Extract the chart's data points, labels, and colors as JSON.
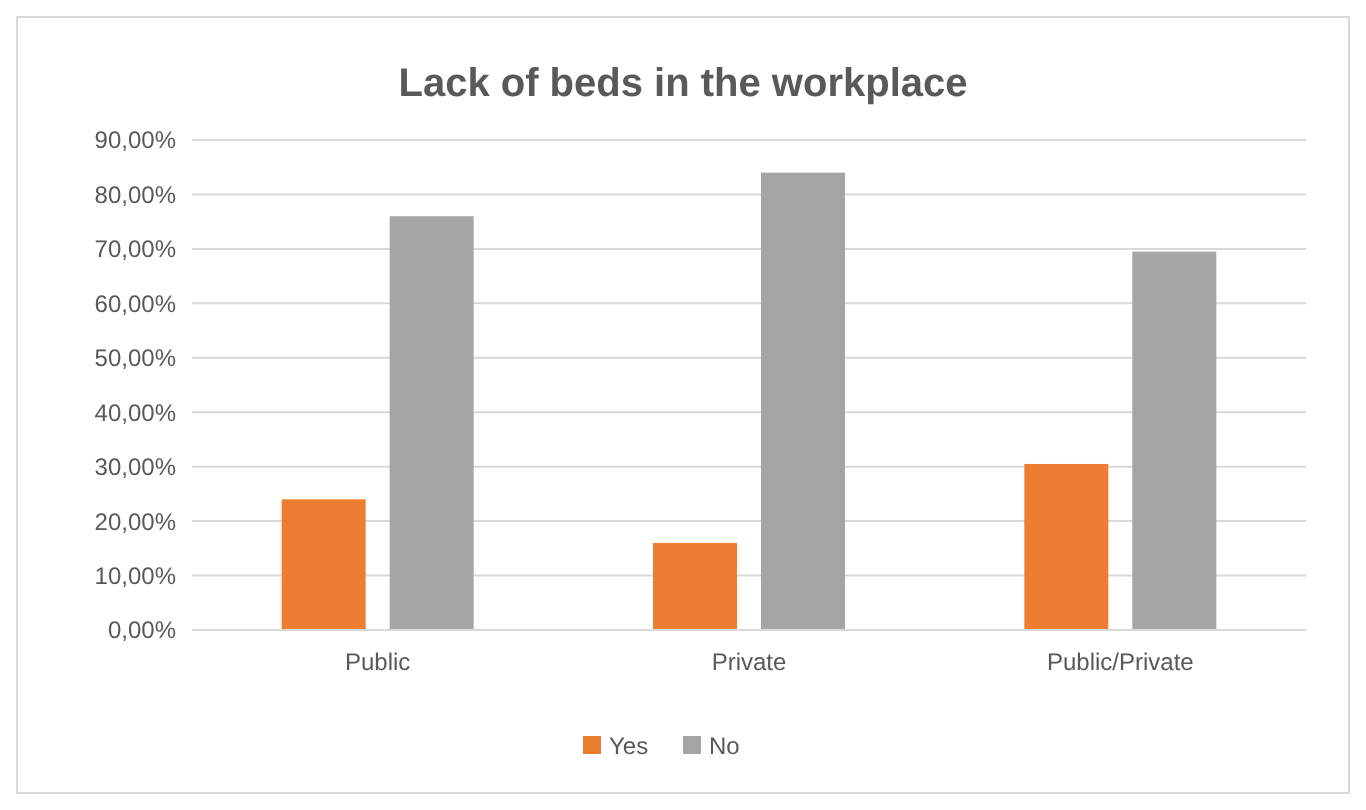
{
  "chart_data": {
    "type": "bar",
    "title": "Lack of beds in the workplace",
    "categories": [
      "Public",
      "Private",
      "Public/Private"
    ],
    "series": [
      {
        "name": "Yes",
        "color": "#ed7d31",
        "values": [
          24,
          16,
          30.5
        ]
      },
      {
        "name": "No",
        "color": "#a5a5a5",
        "values": [
          76,
          84,
          69.5
        ]
      }
    ],
    "ylim": [
      0,
      90
    ],
    "yticks": [
      {
        "value": 0,
        "label": "0,00%"
      },
      {
        "value": 10,
        "label": "10,00%"
      },
      {
        "value": 20,
        "label": "20,00%"
      },
      {
        "value": 30,
        "label": "30,00%"
      },
      {
        "value": 40,
        "label": "40,00%"
      },
      {
        "value": 50,
        "label": "50,00%"
      },
      {
        "value": 60,
        "label": "60,00%"
      },
      {
        "value": 70,
        "label": "70,00%"
      },
      {
        "value": 80,
        "label": "80,00%"
      },
      {
        "value": 90,
        "label": "90,00%"
      }
    ],
    "grid": "y",
    "legend": "bottom"
  }
}
